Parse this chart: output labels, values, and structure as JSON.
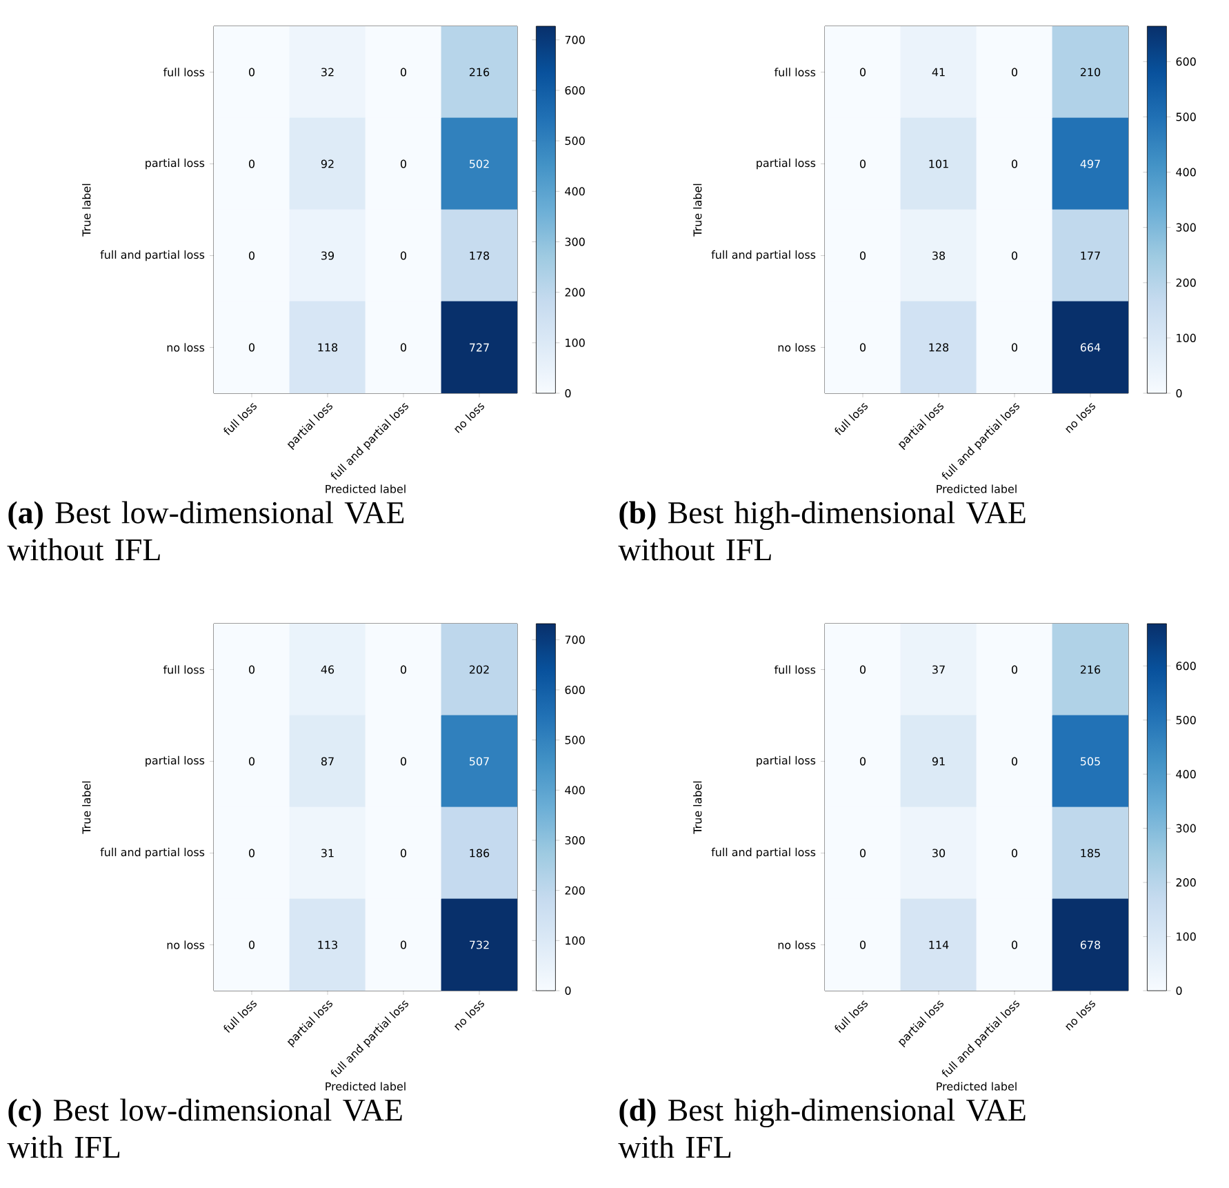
{
  "chart_data": [
    {
      "type": "heatmap",
      "categories": [
        "full loss",
        "partial loss",
        "full and partial loss",
        "no loss"
      ],
      "y_categories": [
        "full loss",
        "partial loss",
        "full and partial loss",
        "no loss"
      ],
      "cells": [
        [
          0,
          32,
          0,
          216
        ],
        [
          0,
          92,
          0,
          502
        ],
        [
          0,
          39,
          0,
          178
        ],
        [
          0,
          118,
          0,
          727
        ]
      ],
      "clim": [
        0,
        727
      ],
      "cticks": [
        0,
        100,
        200,
        300,
        400,
        500,
        600,
        700
      ],
      "xlabel": "Predicted label",
      "ylabel": "True label",
      "data_labels": true,
      "annotations": [
        "**(a)** Best low-dimensional VAE without IFL"
      ]
    },
    {
      "type": "heatmap",
      "categories": [
        "full loss",
        "partial loss",
        "full and partial loss",
        "no loss"
      ],
      "y_categories": [
        "full loss",
        "partial loss",
        "full and partial loss",
        "no loss"
      ],
      "cells": [
        [
          0,
          41,
          0,
          210
        ],
        [
          0,
          101,
          0,
          497
        ],
        [
          0,
          38,
          0,
          177
        ],
        [
          0,
          128,
          0,
          664
        ]
      ],
      "clim": [
        0,
        664
      ],
      "cticks": [
        0,
        100,
        200,
        300,
        400,
        500,
        600
      ],
      "xlabel": "Predicted label",
      "ylabel": "True label",
      "data_labels": true,
      "annotations": [
        "**(b)** Best high-dimensional VAE without IFL"
      ]
    },
    {
      "type": "heatmap",
      "categories": [
        "full loss",
        "partial loss",
        "full and partial loss",
        "no loss"
      ],
      "y_categories": [
        "full loss",
        "partial loss",
        "full and partial loss",
        "no loss"
      ],
      "cells": [
        [
          0,
          46,
          0,
          202
        ],
        [
          0,
          87,
          0,
          507
        ],
        [
          0,
          31,
          0,
          186
        ],
        [
          0,
          113,
          0,
          732
        ]
      ],
      "clim": [
        0,
        732
      ],
      "cticks": [
        0,
        100,
        200,
        300,
        400,
        500,
        600,
        700
      ],
      "xlabel": "Predicted label",
      "ylabel": "True label",
      "data_labels": true,
      "annotations": [
        "**(c)** Best low-dimensional VAE with IFL"
      ]
    },
    {
      "type": "heatmap",
      "categories": [
        "full loss",
        "partial loss",
        "full and partial loss",
        "no loss"
      ],
      "y_categories": [
        "full loss",
        "partial loss",
        "full and partial loss",
        "no loss"
      ],
      "cells": [
        [
          0,
          37,
          0,
          216
        ],
        [
          0,
          91,
          0,
          505
        ],
        [
          0,
          30,
          0,
          185
        ],
        [
          0,
          114,
          0,
          678
        ]
      ],
      "clim": [
        0,
        678
      ],
      "cticks": [
        0,
        100,
        200,
        300,
        400,
        500,
        600
      ],
      "xlabel": "Predicted label",
      "ylabel": "True label",
      "data_labels": true,
      "annotations": [
        "**(d)** Best high-dimensional VAE with IFL"
      ]
    }
  ]
}
